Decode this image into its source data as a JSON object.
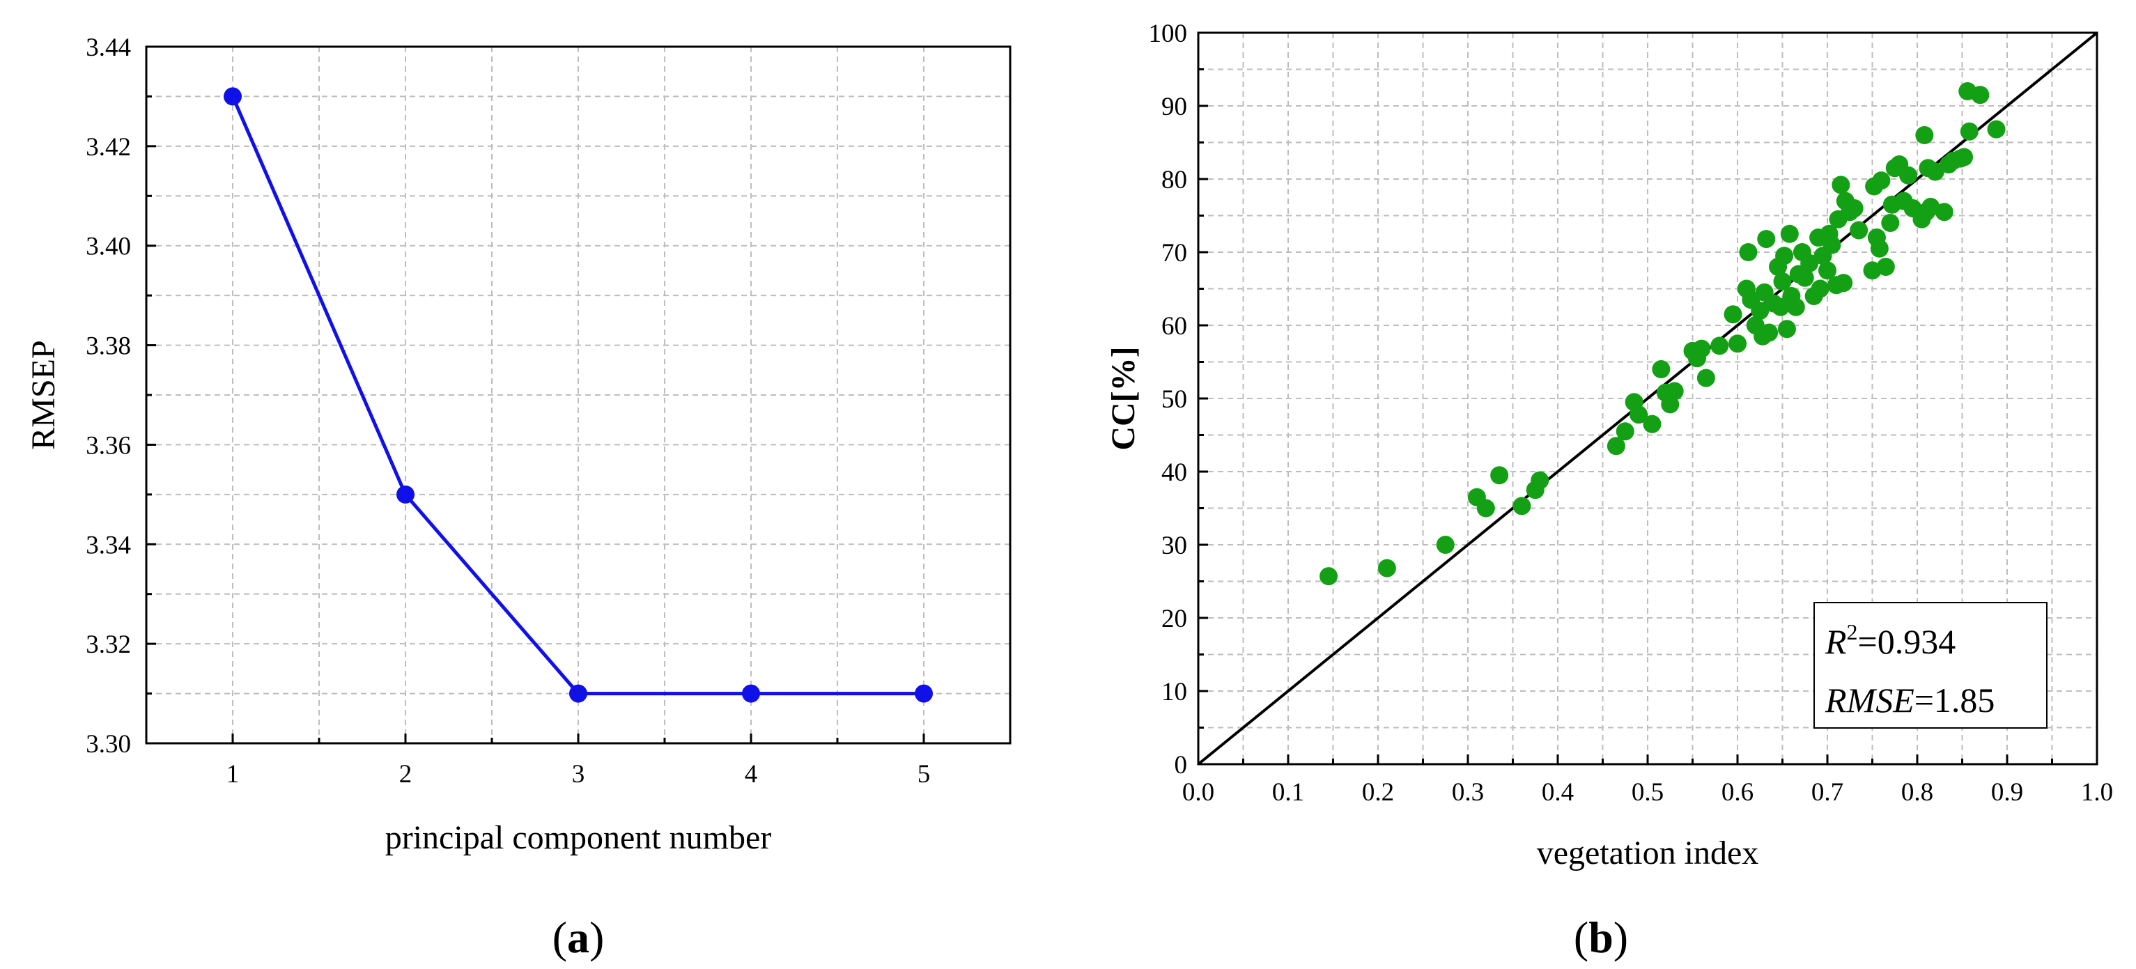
{
  "chart_data": [
    {
      "type": "line",
      "panel_label": "a",
      "xlabel": "principal component number",
      "ylabel": "RMSEP",
      "x": [
        1,
        2,
        3,
        4,
        5
      ],
      "y": [
        3.43,
        3.35,
        3.31,
        3.31,
        3.31
      ],
      "xlim": [
        0.5,
        5.5
      ],
      "ylim": [
        3.3,
        3.44
      ],
      "xticks": [
        "1",
        "2",
        "3",
        "4",
        "5"
      ],
      "yticks": [
        "3.30",
        "3.32",
        "3.34",
        "3.36",
        "3.38",
        "3.40",
        "3.42",
        "3.44"
      ],
      "grid": true,
      "color": "#1010e8"
    },
    {
      "type": "scatter",
      "panel_label": "b",
      "xlabel": "vegetation index",
      "ylabel": "CC[%]",
      "xlim": [
        0.0,
        1.0
      ],
      "ylim": [
        0,
        100
      ],
      "xticks": [
        "0.0",
        "0.1",
        "0.2",
        "0.3",
        "0.4",
        "0.5",
        "0.6",
        "0.7",
        "0.8",
        "0.9",
        "1.0"
      ],
      "yticks": [
        "0",
        "10",
        "20",
        "30",
        "40",
        "50",
        "60",
        "70",
        "80",
        "90",
        "100"
      ],
      "grid": true,
      "color": "#14a014",
      "reference_line": {
        "x": [
          0,
          1
        ],
        "y": [
          0,
          100
        ]
      },
      "stats": {
        "r2_label": "R",
        "r2_sup": "2",
        "r2_value": "=0.934",
        "rmse_label": "RMSE",
        "rmse_value": "=1.85"
      },
      "points": [
        [
          0.145,
          25.7
        ],
        [
          0.21,
          26.8
        ],
        [
          0.275,
          30.0
        ],
        [
          0.31,
          36.5
        ],
        [
          0.32,
          35.0
        ],
        [
          0.335,
          39.5
        ],
        [
          0.36,
          35.3
        ],
        [
          0.375,
          37.5
        ],
        [
          0.38,
          38.8
        ],
        [
          0.465,
          43.5
        ],
        [
          0.475,
          45.5
        ],
        [
          0.485,
          49.5
        ],
        [
          0.49,
          47.8
        ],
        [
          0.505,
          46.5
        ],
        [
          0.515,
          54.0
        ],
        [
          0.52,
          50.8
        ],
        [
          0.525,
          49.2
        ],
        [
          0.53,
          51.0
        ],
        [
          0.55,
          56.5
        ],
        [
          0.555,
          55.5
        ],
        [
          0.56,
          56.8
        ],
        [
          0.565,
          52.8
        ],
        [
          0.58,
          57.2
        ],
        [
          0.595,
          61.5
        ],
        [
          0.6,
          57.5
        ],
        [
          0.61,
          65.0
        ],
        [
          0.612,
          70.0
        ],
        [
          0.615,
          63.5
        ],
        [
          0.62,
          60.0
        ],
        [
          0.625,
          62.0
        ],
        [
          0.628,
          58.5
        ],
        [
          0.63,
          64.5
        ],
        [
          0.632,
          71.8
        ],
        [
          0.635,
          59.0
        ],
        [
          0.64,
          63.0
        ],
        [
          0.645,
          68.0
        ],
        [
          0.648,
          62.5
        ],
        [
          0.65,
          66.0
        ],
        [
          0.652,
          69.5
        ],
        [
          0.655,
          59.5
        ],
        [
          0.658,
          72.5
        ],
        [
          0.66,
          64.0
        ],
        [
          0.665,
          62.5
        ],
        [
          0.668,
          67.0
        ],
        [
          0.672,
          70.0
        ],
        [
          0.675,
          66.5
        ],
        [
          0.68,
          68.5
        ],
        [
          0.685,
          64.0
        ],
        [
          0.69,
          72.0
        ],
        [
          0.692,
          65.0
        ],
        [
          0.695,
          69.5
        ],
        [
          0.7,
          67.5
        ],
        [
          0.702,
          72.5
        ],
        [
          0.705,
          71.0
        ],
        [
          0.71,
          65.5
        ],
        [
          0.712,
          74.5
        ],
        [
          0.715,
          79.2
        ],
        [
          0.718,
          65.8
        ],
        [
          0.72,
          77.0
        ],
        [
          0.725,
          75.5
        ],
        [
          0.73,
          76.0
        ],
        [
          0.735,
          73.0
        ],
        [
          0.75,
          67.5
        ],
        [
          0.752,
          79.0
        ],
        [
          0.755,
          72.0
        ],
        [
          0.758,
          70.5
        ],
        [
          0.76,
          79.8
        ],
        [
          0.765,
          68.0
        ],
        [
          0.77,
          74.0
        ],
        [
          0.772,
          76.5
        ],
        [
          0.775,
          81.5
        ],
        [
          0.78,
          82.0
        ],
        [
          0.785,
          77.0
        ],
        [
          0.79,
          80.5
        ],
        [
          0.795,
          76.0
        ],
        [
          0.805,
          74.5
        ],
        [
          0.808,
          86.0
        ],
        [
          0.81,
          75.5
        ],
        [
          0.812,
          81.5
        ],
        [
          0.815,
          76.2
        ],
        [
          0.82,
          81.0
        ],
        [
          0.83,
          75.5
        ],
        [
          0.835,
          82.0
        ],
        [
          0.84,
          82.5
        ],
        [
          0.848,
          82.8
        ],
        [
          0.852,
          83.0
        ],
        [
          0.856,
          92.0
        ],
        [
          0.858,
          86.5
        ],
        [
          0.87,
          91.5
        ],
        [
          0.888,
          86.8
        ]
      ]
    }
  ]
}
